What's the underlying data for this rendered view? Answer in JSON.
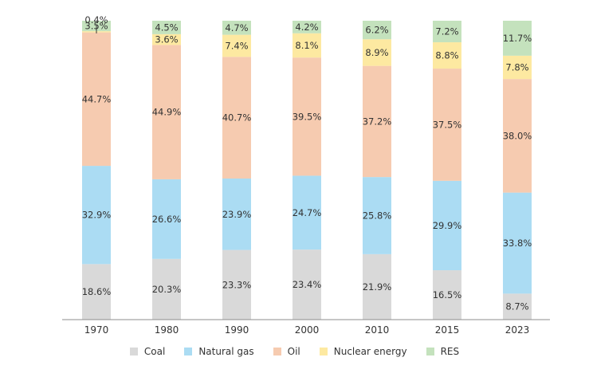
{
  "chart_data": {
    "type": "bar",
    "stacked": true,
    "categories": [
      "1970",
      "1980",
      "1990",
      "2000",
      "2010",
      "2015",
      "2023"
    ],
    "series": [
      {
        "name": "Coal",
        "color": "#d9d9d9",
        "values": [
          18.6,
          20.3,
          23.3,
          23.4,
          21.9,
          16.5,
          8.7
        ],
        "labels": [
          "18.6%",
          "20.3%",
          "23.3%",
          "23.4%",
          "21.9%",
          "16.5%",
          "8.7%"
        ]
      },
      {
        "name": "Natural gas",
        "color": "#abdcf3",
        "values": [
          32.9,
          26.6,
          23.9,
          24.7,
          25.8,
          29.9,
          33.8
        ],
        "labels": [
          "32.9%",
          "26.6%",
          "23.9%",
          "24.7%",
          "25.8%",
          "29.9%",
          "33.8%"
        ]
      },
      {
        "name": "Oil",
        "color": "#f6cbb0",
        "values": [
          44.7,
          44.9,
          40.7,
          39.5,
          37.2,
          37.5,
          38.0
        ],
        "labels": [
          "44.7%",
          "44.9%",
          "40.7%",
          "39.5%",
          "37.2%",
          "37.5%",
          "38.0%"
        ]
      },
      {
        "name": "Nuclear energy",
        "color": "#fde9a1",
        "values": [
          0.4,
          3.6,
          7.4,
          8.1,
          8.9,
          8.8,
          7.8
        ],
        "labels": [
          "0.4%",
          "3.6%",
          "7.4%",
          "8.1%",
          "8.9%",
          "8.8%",
          "7.8%"
        ]
      },
      {
        "name": "RES",
        "color": "#c4e2bd",
        "values": [
          3.5,
          4.5,
          4.7,
          4.2,
          6.2,
          7.2,
          11.7
        ],
        "labels": [
          "3.5%",
          "4.5%",
          "4.7%",
          "4.2%",
          "6.2%",
          "7.2%",
          "11.7%"
        ]
      }
    ],
    "ylim": [
      0,
      100
    ],
    "legend_position": "bottom",
    "grid": false
  }
}
